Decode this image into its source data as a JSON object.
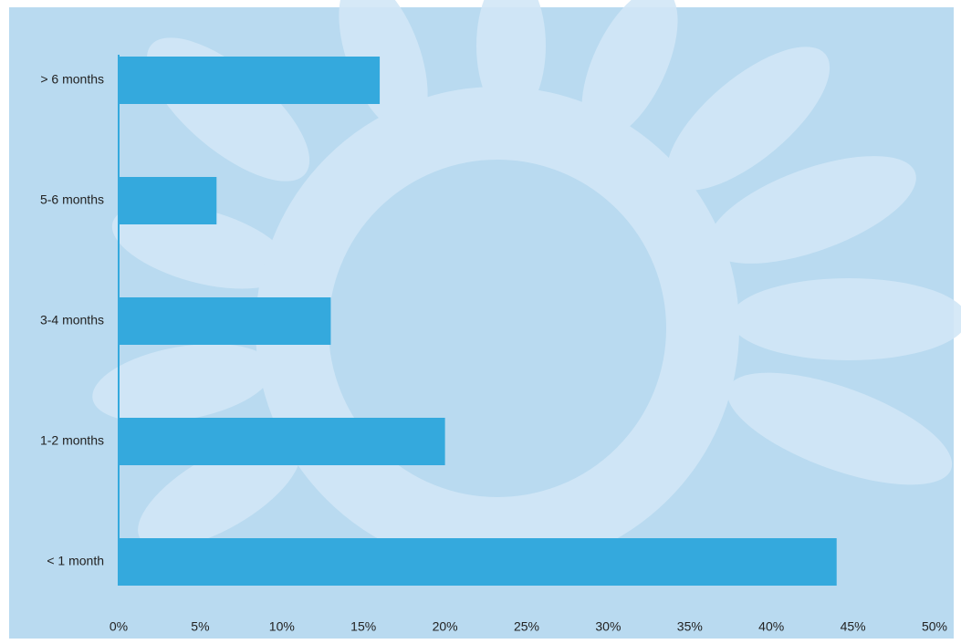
{
  "chart_data": {
    "type": "bar",
    "orientation": "horizontal",
    "categories": [
      "> 6 months",
      "5-6 months",
      "3-4 months",
      "1-2 months",
      "< 1 month"
    ],
    "values": [
      16,
      6,
      13,
      20,
      44
    ],
    "color": "#34a9dd",
    "xlim": [
      0,
      50
    ],
    "xticks": [
      {
        "value": 0,
        "label": "0%"
      },
      {
        "value": 5,
        "label": "5%"
      },
      {
        "value": 10,
        "label": "10%"
      },
      {
        "value": 15,
        "label": "15%"
      },
      {
        "value": 20,
        "label": "20%"
      },
      {
        "value": 25,
        "label": "25%"
      },
      {
        "value": 30,
        "label": "30%"
      },
      {
        "value": 35,
        "label": "35%"
      },
      {
        "value": 40,
        "label": "40%"
      },
      {
        "value": 45,
        "label": "45%"
      },
      {
        "value": 50,
        "label": "50%"
      }
    ],
    "grid": false
  }
}
